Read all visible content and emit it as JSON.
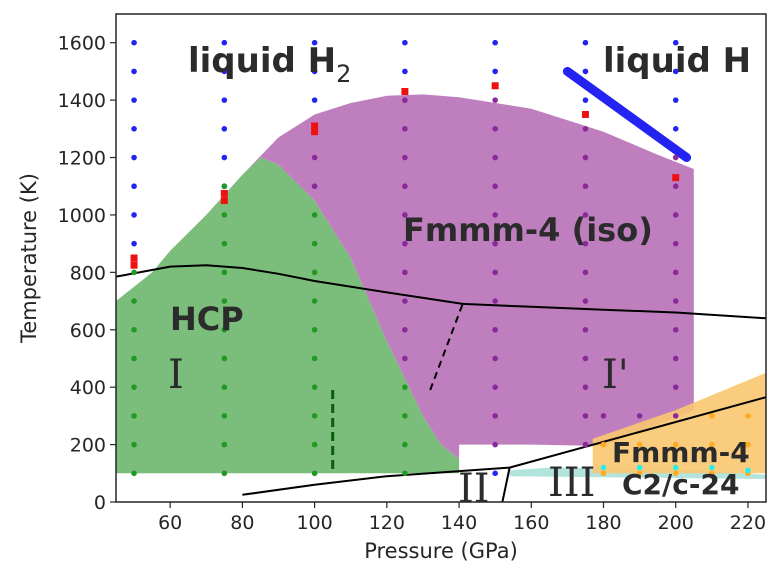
{
  "chart_data": {
    "type": "scatter",
    "xlabel": "Pressure (GPa)",
    "ylabel": "Temperature (K)",
    "xlim": [
      45,
      225
    ],
    "ylim": [
      0,
      1700
    ],
    "xticks": [
      60,
      80,
      100,
      120,
      140,
      160,
      180,
      200,
      220
    ],
    "yticks": [
      0,
      200,
      400,
      600,
      800,
      1000,
      1200,
      1400,
      1600
    ],
    "grid": false,
    "colors": {
      "hcp": "#7bbd7b",
      "fmmm_iso": "#bf7fbf",
      "fmmm4": "#f9c76f",
      "c2c": "#b2e3dc",
      "blue": "#2424f2",
      "green": "#229922",
      "purple": "#8a2a9a",
      "orange": "#ffaa22",
      "cyan": "#22eeee",
      "red": "#ee1111",
      "line": "#000000",
      "dashed_green": "#0b5e0b"
    },
    "annotations": {
      "liquid_h2": "liquid H",
      "liquid_h2_sub": "2",
      "liquid_h": "liquid H",
      "fmmm_iso": "Fmmm-4 (iso)",
      "hcp": "HCP",
      "fmmm4": "Fmmm-4",
      "c2c": "C2/c-24",
      "phase_I": "I",
      "phase_Iprime": "I'",
      "phase_II": "II",
      "phase_III": "III"
    },
    "regions": {
      "hcp": [
        [
          45,
          700
        ],
        [
          55,
          800
        ],
        [
          60,
          875
        ],
        [
          70,
          1000
        ],
        [
          80,
          1140
        ],
        [
          85,
          1200
        ],
        [
          90,
          1175
        ],
        [
          100,
          1050
        ],
        [
          110,
          850
        ],
        [
          120,
          560
        ],
        [
          125,
          430
        ],
        [
          130,
          300
        ],
        [
          135,
          200
        ],
        [
          140,
          150
        ],
        [
          140,
          100
        ],
        [
          45,
          100
        ]
      ],
      "fmmm_iso": [
        [
          80,
          1140
        ],
        [
          90,
          1270
        ],
        [
          100,
          1350
        ],
        [
          110,
          1390
        ],
        [
          120,
          1415
        ],
        [
          130,
          1420
        ],
        [
          140,
          1410
        ],
        [
          160,
          1370
        ],
        [
          180,
          1290
        ],
        [
          195,
          1210
        ],
        [
          205,
          1160
        ],
        [
          205,
          320
        ],
        [
          180,
          195
        ],
        [
          160,
          200
        ],
        [
          140,
          200
        ],
        [
          140,
          150
        ],
        [
          135,
          200
        ],
        [
          130,
          300
        ],
        [
          125,
          430
        ],
        [
          120,
          560
        ],
        [
          110,
          850
        ],
        [
          100,
          1050
        ],
        [
          90,
          1175
        ],
        [
          85,
          1200
        ]
      ],
      "fmmm4": [
        [
          177,
          100
        ],
        [
          177,
          220
        ],
        [
          200,
          320
        ],
        [
          225,
          450
        ],
        [
          225,
          100
        ]
      ],
      "c2c": [
        [
          154,
          110
        ],
        [
          165,
          120
        ],
        [
          200,
          115
        ],
        [
          225,
          95
        ],
        [
          225,
          80
        ],
        [
          154,
          90
        ]
      ]
    },
    "boundary_lines": [
      [
        [
          45,
          785
        ],
        [
          60,
          820
        ],
        [
          70,
          825
        ],
        [
          80,
          815
        ],
        [
          90,
          795
        ],
        [
          100,
          770
        ],
        [
          120,
          730
        ],
        [
          141,
          690
        ],
        [
          160,
          680
        ],
        [
          180,
          670
        ],
        [
          200,
          660
        ],
        [
          225,
          640
        ]
      ],
      [
        [
          80,
          25
        ],
        [
          100,
          60
        ],
        [
          120,
          90
        ],
        [
          154,
          120
        ],
        [
          225,
          365
        ]
      ],
      [
        [
          152,
          0
        ],
        [
          154,
          120
        ]
      ]
    ],
    "dashed_lines": [
      [
        [
          132,
          390
        ],
        [
          141,
          690
        ]
      ]
    ],
    "dashed_green_lines": [
      [
        [
          105,
          390
        ],
        [
          105,
          100
        ]
      ]
    ],
    "liquid_h_line": [
      [
        170,
        1500
      ],
      [
        203,
        1200
      ]
    ],
    "series": [
      {
        "color": "blue",
        "x": 50,
        "y": [
          900,
          1000,
          1100,
          1200,
          1300,
          1400,
          1500,
          1600
        ]
      },
      {
        "color": "blue",
        "x": 75,
        "y": [
          1100,
          1200,
          1300,
          1400,
          1500,
          1600
        ]
      },
      {
        "color": "blue",
        "x": 100,
        "y": [
          1400,
          1500,
          1600
        ]
      },
      {
        "color": "blue",
        "x": 125,
        "y": [
          1500,
          1600
        ]
      },
      {
        "color": "blue",
        "x": 150,
        "y": [
          1500,
          1600
        ]
      },
      {
        "color": "blue",
        "x": 175,
        "y": [
          1400,
          1500,
          1600
        ]
      },
      {
        "color": "blue",
        "x": 200,
        "y": [
          1300,
          1400,
          1500,
          1600
        ]
      },
      {
        "color": "blue",
        "x": 150,
        "y": [
          100
        ]
      },
      {
        "color": "green",
        "x": 50,
        "y": [
          100,
          200,
          300,
          400,
          500,
          600,
          700,
          800
        ]
      },
      {
        "color": "green",
        "x": 75,
        "y": [
          100,
          200,
          300,
          400,
          500,
          600,
          700,
          800,
          900,
          1000,
          1100
        ]
      },
      {
        "color": "green",
        "x": 100,
        "y": [
          100,
          200,
          300,
          400,
          500,
          600,
          700,
          800,
          900,
          1000
        ]
      },
      {
        "color": "green",
        "x": 125,
        "y": [
          100,
          200,
          300,
          400
        ]
      },
      {
        "color": "purple",
        "x": 100,
        "y": [
          1100,
          1200,
          1300
        ]
      },
      {
        "color": "purple",
        "x": 125,
        "y": [
          500,
          600,
          700,
          800,
          900,
          1000,
          1100,
          1200,
          1300,
          1400
        ]
      },
      {
        "color": "purple",
        "x": 150,
        "y": [
          200,
          300,
          400,
          500,
          600,
          700,
          800,
          900,
          1000,
          1100,
          1200,
          1300,
          1400
        ]
      },
      {
        "color": "purple",
        "x": 175,
        "y": [
          200,
          300,
          400,
          500,
          600,
          700,
          800,
          900,
          1000,
          1100,
          1200,
          1300
        ]
      },
      {
        "color": "purple",
        "x": 180,
        "y": [
          300
        ]
      },
      {
        "color": "purple",
        "x": 190,
        "y": [
          300
        ]
      },
      {
        "color": "purple",
        "x": 200,
        "y": [
          300,
          400,
          500,
          600,
          700,
          800,
          900,
          1000,
          1100,
          1200
        ]
      },
      {
        "color": "orange",
        "x": 180,
        "y": [
          100,
          200
        ]
      },
      {
        "color": "orange",
        "x": 190,
        "y": [
          100,
          200
        ]
      },
      {
        "color": "orange",
        "x": 200,
        "y": [
          100,
          200
        ]
      },
      {
        "color": "orange",
        "x": 210,
        "y": [
          100,
          200,
          300
        ]
      },
      {
        "color": "orange",
        "x": 220,
        "y": [
          100,
          200,
          300
        ]
      },
      {
        "color": "cyan",
        "x": 180,
        "y": [
          120
        ]
      },
      {
        "color": "cyan",
        "x": 190,
        "y": [
          120
        ]
      },
      {
        "color": "cyan",
        "x": 200,
        "y": [
          120
        ]
      },
      {
        "color": "cyan",
        "x": 210,
        "y": [
          120
        ]
      },
      {
        "color": "cyan",
        "x": 220,
        "y": [
          110
        ]
      }
    ],
    "red_markers": [
      [
        50,
        850
      ],
      [
        50,
        825
      ],
      [
        75,
        1075
      ],
      [
        75,
        1050
      ],
      [
        100,
        1310
      ],
      [
        100,
        1290
      ],
      [
        125,
        1430
      ],
      [
        150,
        1450
      ],
      [
        175,
        1350
      ],
      [
        200,
        1130
      ]
    ]
  }
}
